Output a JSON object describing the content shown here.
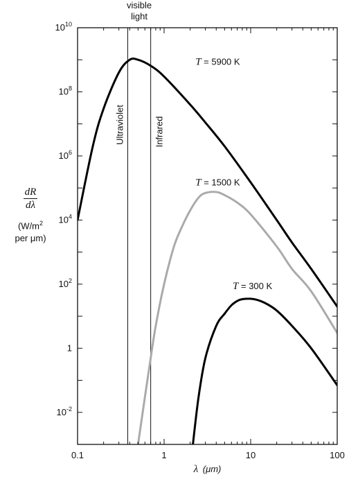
{
  "chart_data": {
    "type": "line",
    "x_scale": "log",
    "y_scale": "log",
    "xlim": [
      0.1,
      100
    ],
    "ylim": [
      0.001,
      10000000000
    ],
    "x_ticks": [
      {
        "value": 0.1,
        "label": "0.1"
      },
      {
        "value": 1,
        "label": "1"
      },
      {
        "value": 10,
        "label": "10"
      },
      {
        "value": 100,
        "label": "100"
      }
    ],
    "y_ticks": [
      {
        "value": 0.01,
        "base": "10",
        "exp": "-2"
      },
      {
        "value": 1,
        "base": "1",
        "exp": ""
      },
      {
        "value": 100,
        "base": "10",
        "exp": "2"
      },
      {
        "value": 10000,
        "base": "10",
        "exp": "4"
      },
      {
        "value": 1000000,
        "base": "10",
        "exp": "6"
      },
      {
        "value": 100000000,
        "base": "10",
        "exp": "8"
      },
      {
        "value": 10000000000,
        "base": "10",
        "exp": "10"
      }
    ],
    "xlabel": {
      "symbol": "λ",
      "unit": "(μm)"
    },
    "ylabel": {
      "numerator": "dR",
      "denominator": "dλ",
      "units_line1": "(W/m",
      "units_sup": "2",
      "units_line2": "per μm)"
    },
    "visible_band": {
      "range": [
        0.38,
        0.7
      ],
      "label_line1": "visible",
      "label_line2": "light",
      "left_label": "Ultraviolet",
      "right_label": "Infrared"
    },
    "series": [
      {
        "name": "T = 5900 K",
        "label_parts": {
          "var": "T",
          "rest": " = 5900 K"
        },
        "label_at": [
          2.3,
          700000000
        ],
        "color": "#000000",
        "x": [
          0.1,
          0.15,
          0.2,
          0.3,
          0.4,
          0.5,
          0.7,
          1,
          2,
          3,
          5,
          10,
          20,
          30,
          50,
          100
        ],
        "y": [
          10000,
          2000000,
          30000000,
          400000000,
          1000000000,
          1000000000,
          650000000,
          300000000,
          40000000,
          11000000,
          2000000,
          150000,
          10000,
          2000,
          300,
          20
        ]
      },
      {
        "name": "T = 1500 K",
        "label_parts": {
          "var": "T",
          "rest": " = 1500 K"
        },
        "label_at": [
          2.3,
          120000
        ],
        "color": "#aaaaaa",
        "x": [
          0.5,
          0.6,
          0.7,
          0.8,
          1,
          1.3,
          1.6,
          2,
          2.5,
          3,
          4,
          5,
          7,
          10,
          20,
          30,
          50,
          100
        ],
        "y": [
          0.001,
          0.03,
          0.5,
          5,
          100,
          1500,
          6000,
          20000,
          50000,
          70000,
          75000,
          60000,
          35000,
          15000,
          1500,
          300,
          60,
          3
        ]
      },
      {
        "name": "T = 300 K",
        "label_parts": {
          "var": "T",
          "rest": " = 300 K"
        },
        "label_at": [
          6.2,
          70
        ],
        "color": "#000000",
        "x": [
          2.15,
          2.5,
          3,
          4,
          5,
          6,
          7,
          8,
          10,
          12,
          15,
          20,
          30,
          50,
          100
        ],
        "y": [
          0.001,
          0.03,
          0.5,
          5,
          12,
          22,
          30,
          34,
          35,
          32,
          25,
          15,
          5,
          1,
          0.07
        ]
      }
    ]
  }
}
